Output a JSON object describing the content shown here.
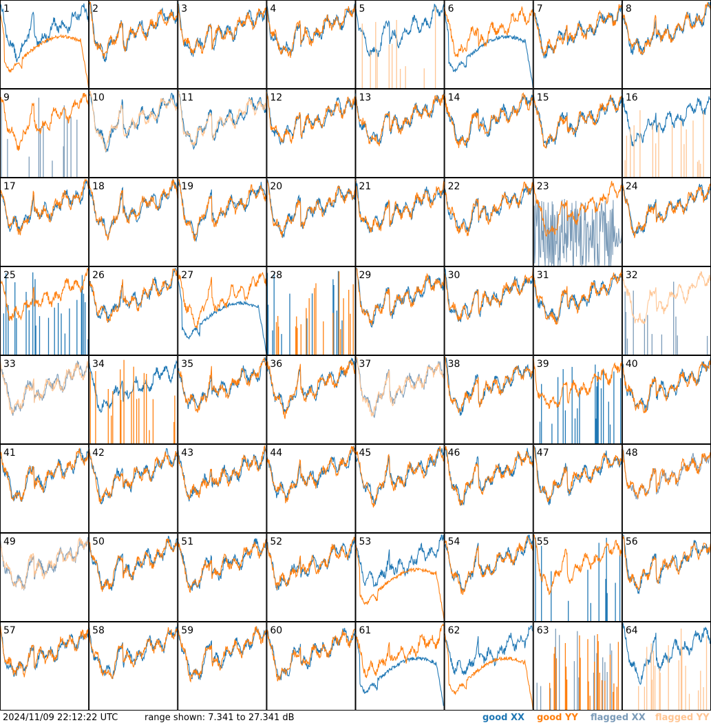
{
  "chart_data": {
    "type": "line",
    "layout": "8x8 small multiples",
    "panels": [
      "1",
      "2",
      "3",
      "4",
      "5",
      "6",
      "7",
      "8",
      "9",
      "10",
      "11",
      "12",
      "13",
      "14",
      "15",
      "16",
      "17",
      "18",
      "19",
      "20",
      "21",
      "22",
      "23",
      "24",
      "25",
      "26",
      "27",
      "28",
      "29",
      "30",
      "31",
      "32",
      "33",
      "34",
      "35",
      "36",
      "37",
      "38",
      "39",
      "40",
      "41",
      "42",
      "43",
      "44",
      "45",
      "46",
      "47",
      "48",
      "49",
      "50",
      "51",
      "52",
      "53",
      "54",
      "55",
      "56",
      "57",
      "58",
      "59",
      "60",
      "61",
      "62",
      "63",
      "64"
    ],
    "series": [
      {
        "name": "good XX",
        "color": "#1f77b4"
      },
      {
        "name": "good YY",
        "color": "#ff7f0e"
      },
      {
        "name": "flagged XX",
        "color": "#7b9bb8"
      },
      {
        "name": "flagged YY",
        "color": "#ffc593"
      }
    ],
    "ylim": [
      7.341,
      27.341
    ],
    "panel_styles": {
      "1": {
        "xx": "good",
        "yy": "good",
        "yy_shape": "bowl_drop"
      },
      "5": {
        "xx": "good",
        "yy": "flagged",
        "yy_shape": "spikes"
      },
      "6": {
        "xx": "good",
        "yy": "good",
        "xx_shape": "bowl_drop"
      },
      "9": {
        "xx": "flagged",
        "yy": "good",
        "xx_shape": "spikes"
      },
      "10": {
        "xx": "good",
        "yy": "flagged"
      },
      "11": {
        "xx": "good",
        "yy": "flagged"
      },
      "16": {
        "xx": "good",
        "yy": "flagged",
        "yy_shape": "spikes"
      },
      "23": {
        "xx": "flagged",
        "yy": "good",
        "xx_shape": "noisy_low"
      },
      "25": {
        "xx": "good",
        "yy": "good",
        "xx_shape": "spikes"
      },
      "27": {
        "xx": "good",
        "yy": "good",
        "xx_shape": "bowl_drop"
      },
      "28": {
        "xx": "good",
        "yy": "good",
        "yy_shape": "spikes",
        "xx_shape": "spikes"
      },
      "32": {
        "xx": "flagged",
        "yy": "flagged",
        "xx_shape": "spikes"
      },
      "33": {
        "xx": "flagged",
        "yy": "flagged"
      },
      "34": {
        "xx": "good",
        "yy": "good",
        "yy_shape": "spikes"
      },
      "37": {
        "xx": "flagged",
        "yy": "flagged"
      },
      "39": {
        "xx": "good",
        "yy": "good",
        "xx_shape": "spikes"
      },
      "48": {
        "xx": "flagged",
        "yy": "good"
      },
      "49": {
        "xx": "flagged",
        "yy": "flagged"
      },
      "53": {
        "xx": "good",
        "yy": "good",
        "yy_shape": "bowl_drop"
      },
      "55": {
        "xx": "good",
        "yy": "good",
        "xx_shape": "spikes"
      },
      "61": {
        "xx": "good",
        "yy": "good",
        "xx_shape": "bowl_drop"
      },
      "62": {
        "xx": "good",
        "yy": "good",
        "yy_shape": "bowl_drop"
      },
      "63": {
        "xx": "flagged",
        "yy": "good",
        "yy_shape": "spikes",
        "xx_shape": "spikes"
      },
      "64": {
        "xx": "good",
        "yy": "flagged",
        "yy_shape": "spikes"
      }
    }
  },
  "footer": {
    "timestamp": "2024/11/09 22:12:22 UTC",
    "range_text": "range shown: 7.341 to 27.341 dB"
  },
  "legend": {
    "good_xx": "good XX",
    "good_yy": "good YY",
    "flagged_xx": "flagged XX",
    "flagged_yy": "flagged YY"
  }
}
